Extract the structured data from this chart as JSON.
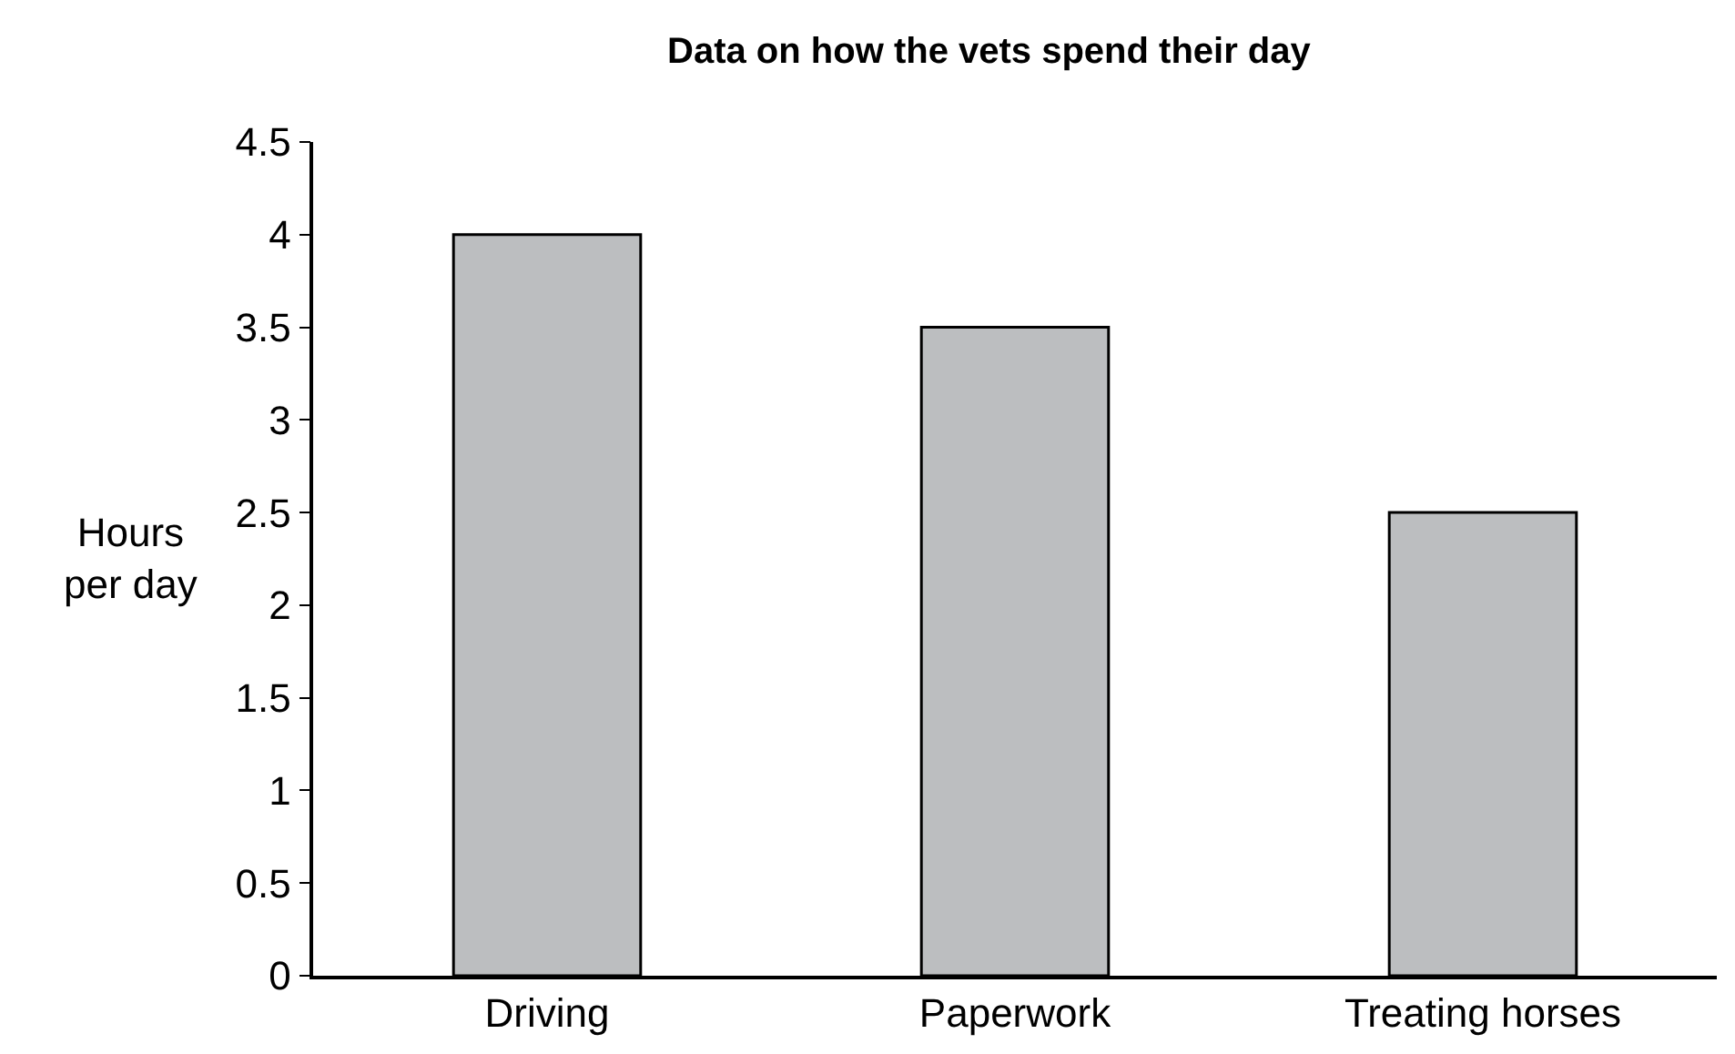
{
  "chart_data": {
    "type": "bar",
    "title": "Data on how the vets spend their day",
    "ylabel": "Hours\nper day",
    "categories": [
      "Driving",
      "Paperwork",
      "Treating horses"
    ],
    "values": [
      4,
      3.5,
      2.5
    ],
    "color": "#bcbec0",
    "ylim": [
      0,
      4.5
    ],
    "yticks": [
      0,
      0.5,
      1,
      1.5,
      2,
      2.5,
      3,
      3.5,
      4,
      4.5
    ]
  }
}
